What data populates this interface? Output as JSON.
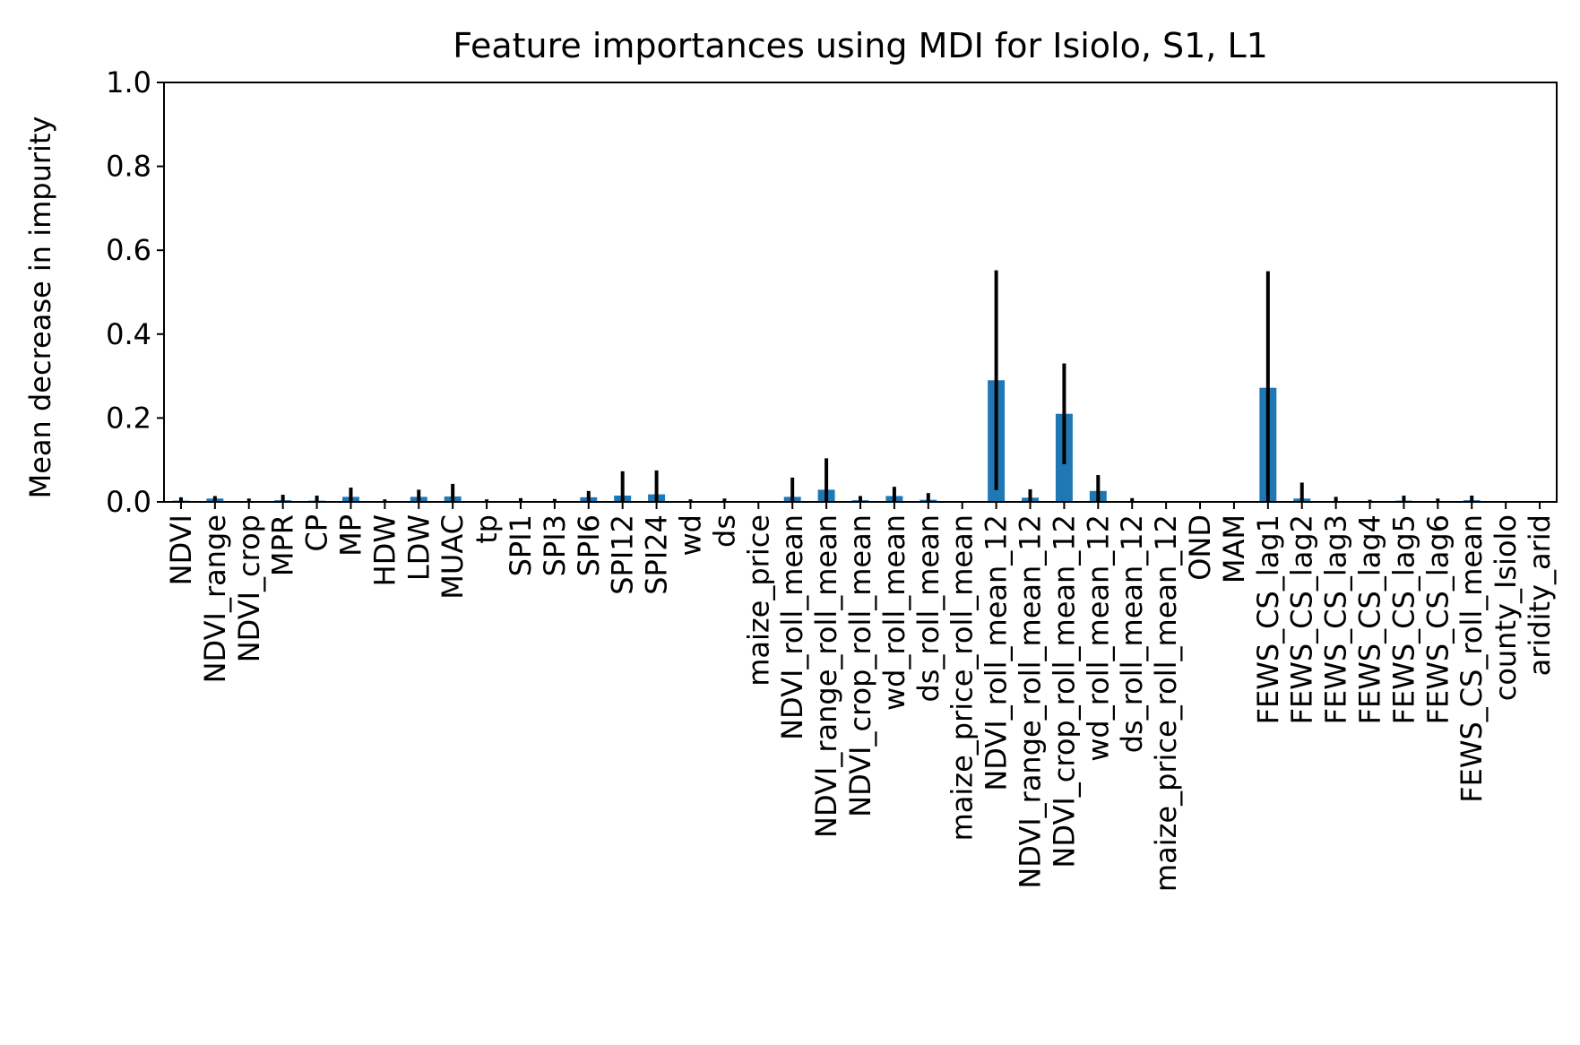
{
  "chart_data": {
    "type": "bar",
    "title": "Feature importances using MDI for Isiolo, S1, L1",
    "xlabel": "",
    "ylabel": "Mean decrease in impurity",
    "ylim": [
      0,
      1.0
    ],
    "yticks": [
      "0.0",
      "0.2",
      "0.4",
      "0.6",
      "0.8",
      "1.0"
    ],
    "grid": false,
    "bar_color": "#1f77b4",
    "errorbar_color": "#000000",
    "categories": [
      "NDVI",
      "NDVI_range",
      "NDVI_crop",
      "MPR",
      "CP",
      "MP",
      "HDW",
      "LDW",
      "MUAC",
      "tp",
      "SPI1",
      "SPI3",
      "SPI6",
      "SPI12",
      "SPI24",
      "wd",
      "ds",
      "maize_price",
      "NDVI_roll_mean",
      "NDVI_range_roll_mean",
      "NDVI_crop_roll_mean",
      "wd_roll_mean",
      "ds_roll_mean",
      "maize_price_roll_mean",
      "NDVI_roll_mean_12",
      "NDVI_range_roll_mean_12",
      "NDVI_crop_roll_mean_12",
      "wd_roll_mean_12",
      "ds_roll_mean_12",
      "maize_price_roll_mean_12",
      "OND",
      "MAM",
      "FEWS_CS_lag1",
      "FEWS_CS_lag2",
      "FEWS_CS_lag3",
      "FEWS_CS_lag4",
      "FEWS_CS_lag5",
      "FEWS_CS_lag6",
      "FEWS_CS_roll_mean",
      "county_Isiolo",
      "aridity_arid"
    ],
    "values": [
      0.003,
      0.008,
      0.002,
      0.004,
      0.003,
      0.012,
      0.002,
      0.012,
      0.013,
      0.001,
      0.002,
      0.002,
      0.011,
      0.015,
      0.018,
      0.002,
      0.002,
      0.0,
      0.012,
      0.029,
      0.004,
      0.014,
      0.005,
      0.0,
      0.29,
      0.01,
      0.21,
      0.026,
      0.002,
      0.0,
      0.0,
      0.0,
      0.272,
      0.008,
      0.002,
      0.001,
      0.003,
      0.002,
      0.004,
      0.0,
      0.0
    ],
    "errors": [
      0.008,
      0.006,
      0.006,
      0.013,
      0.012,
      0.022,
      0.004,
      0.017,
      0.03,
      0.005,
      0.007,
      0.005,
      0.015,
      0.058,
      0.057,
      0.004,
      0.006,
      0.0,
      0.046,
      0.075,
      0.01,
      0.022,
      0.016,
      0.0,
      0.262,
      0.02,
      0.12,
      0.038,
      0.007,
      0.0,
      0.0,
      0.0,
      0.278,
      0.038,
      0.01,
      0.004,
      0.012,
      0.006,
      0.011,
      0.0,
      0.0
    ]
  }
}
